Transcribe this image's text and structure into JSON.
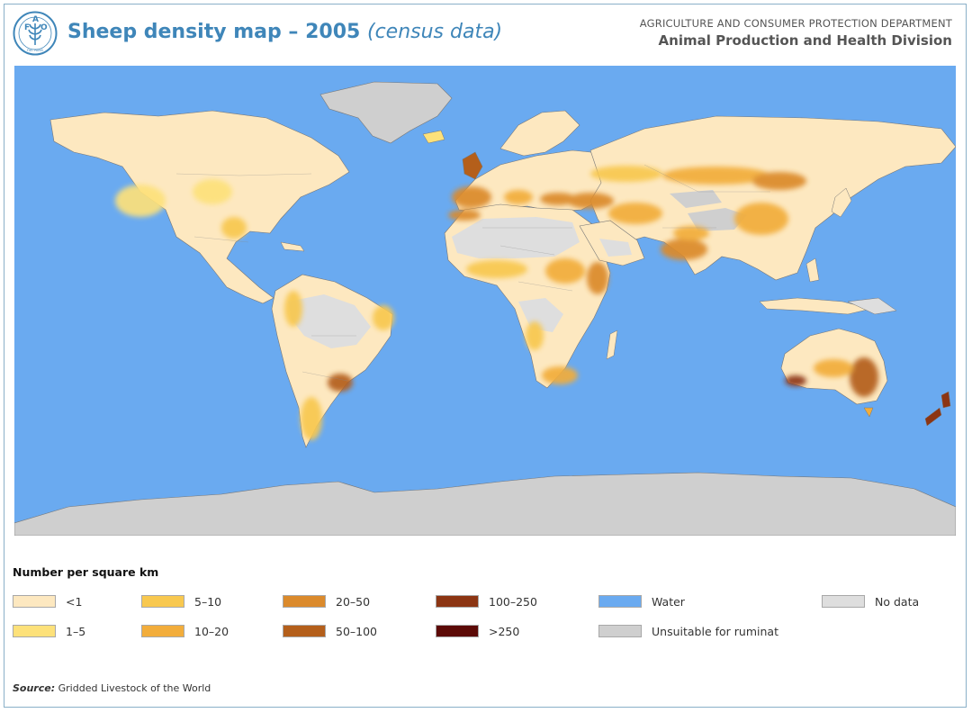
{
  "header": {
    "logo_letters": [
      "F",
      "A",
      "O"
    ],
    "logo_motto": "FIAT PANIS",
    "title": "Sheep density map – 2005",
    "subtitle": "(census data)",
    "department": "AGRICULTURE AND CONSUMER PROTECTION DEPARTMENT",
    "division": "Animal Production and Health Division"
  },
  "map": {
    "colors": {
      "water": "#6aaaf0",
      "land_base": "#fde8c0",
      "unsuitable": "#cfcfcf",
      "no_data": "#dedede"
    }
  },
  "legend": {
    "title": "Number per square km",
    "items": [
      {
        "label": "<1",
        "color": "#fde8c0"
      },
      {
        "label": "1–5",
        "color": "#fde17a"
      },
      {
        "label": "5–10",
        "color": "#f8c84f"
      },
      {
        "label": "10–20",
        "color": "#f2ad3b"
      },
      {
        "label": "20–50",
        "color": "#db8a2c"
      },
      {
        "label": "50–100",
        "color": "#b45f1b"
      },
      {
        "label": "100–250",
        "color": "#8c3513"
      },
      {
        "label": ">250",
        "color": "#5c0a06"
      },
      {
        "label": "Water",
        "color": "#6aaaf0"
      },
      {
        "label": "Unsuitable for ruminat",
        "color": "#cfcfcf"
      },
      {
        "label": "No data",
        "color": "#dedede"
      }
    ]
  },
  "source": {
    "label": "Source:",
    "text": "Gridded Livestock of the World"
  }
}
